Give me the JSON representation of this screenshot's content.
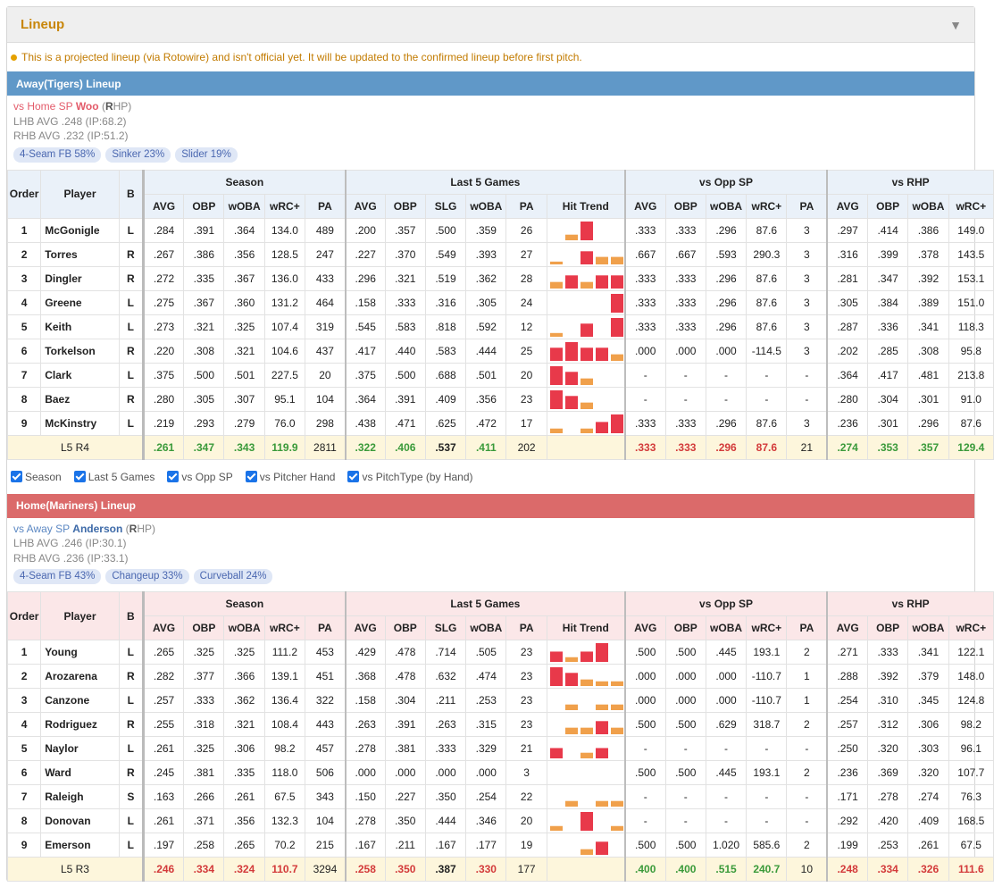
{
  "panel": {
    "title": "Lineup"
  },
  "notice": "This is a projected lineup (via Rotowire) and isn't official yet. It will be updated to the confirmed lineup before first pitch.",
  "checkboxes": [
    "Season",
    "Last 5 Games",
    "vs Opp SP",
    "vs Pitcher Hand",
    "vs PitchType (by Hand)"
  ],
  "columns": {
    "order": "Order",
    "player": "Player",
    "b": "B",
    "season": "Season",
    "last5": "Last 5 Games",
    "vs_opp": "vs Opp SP",
    "vs_hand": "vs RHP",
    "season_cols": [
      "AVG",
      "OBP",
      "wOBA",
      "wRC+",
      "PA"
    ],
    "last5_cols": [
      "AVG",
      "OBP",
      "SLG",
      "wOBA",
      "PA",
      "Hit Trend"
    ],
    "opp_cols": [
      "AVG",
      "OBP",
      "wOBA",
      "wRC+",
      "PA"
    ],
    "hand_cols": [
      "AVG",
      "OBP",
      "wOBA",
      "wRC+"
    ]
  },
  "colors": {
    "trend_red": "#e8394a",
    "trend_orange": "#f0a04b"
  },
  "away": {
    "bar": "Away(Tigers) Lineup",
    "sp_vs": "vs Home SP",
    "sp_name": "Woo",
    "sp_hand_letter": "R",
    "sp_hand_rest": "HP",
    "lhb": "LHB AVG .248 (IP:68.2)",
    "rhb": "RHB AVG .232 (IP:51.2)",
    "pitches": [
      "4-Seam FB 58%",
      "Sinker 23%",
      "Slider 19%"
    ],
    "rows": [
      {
        "o": "1",
        "p": "McGonigle",
        "b": "L",
        "s": [
          ".284",
          ".391",
          ".364",
          "134.0",
          "489"
        ],
        "l": [
          ".200",
          ".357",
          ".500",
          ".359",
          "26"
        ],
        "t": [
          0,
          0.3,
          1,
          0,
          0
        ],
        "v": [
          ".333",
          ".333",
          ".296",
          "87.6",
          "3"
        ],
        "h": [
          ".297",
          ".414",
          ".386",
          "149.0"
        ]
      },
      {
        "o": "2",
        "p": "Torres",
        "b": "R",
        "s": [
          ".267",
          ".386",
          ".356",
          "128.5",
          "247"
        ],
        "l": [
          ".227",
          ".370",
          ".549",
          ".393",
          "27"
        ],
        "t": [
          0.15,
          0,
          0.7,
          0.4,
          0.4
        ],
        "v": [
          ".667",
          ".667",
          ".593",
          "290.3",
          "3"
        ],
        "h": [
          ".316",
          ".399",
          ".378",
          "143.5"
        ]
      },
      {
        "o": "3",
        "p": "Dingler",
        "b": "R",
        "s": [
          ".272",
          ".335",
          ".367",
          "136.0",
          "433"
        ],
        "l": [
          ".296",
          ".321",
          ".519",
          ".362",
          "28"
        ],
        "t": [
          0.35,
          0.7,
          0.35,
          0.7,
          0.7
        ],
        "v": [
          ".333",
          ".333",
          ".296",
          "87.6",
          "3"
        ],
        "h": [
          ".281",
          ".347",
          ".392",
          "153.1"
        ]
      },
      {
        "o": "4",
        "p": "Greene",
        "b": "L",
        "s": [
          ".275",
          ".367",
          ".360",
          "131.2",
          "464"
        ],
        "l": [
          ".158",
          ".333",
          ".316",
          ".305",
          "24"
        ],
        "t": [
          0,
          0,
          0,
          0,
          1
        ],
        "v": [
          ".333",
          ".333",
          ".296",
          "87.6",
          "3"
        ],
        "h": [
          ".305",
          ".384",
          ".389",
          "151.0"
        ]
      },
      {
        "o": "5",
        "p": "Keith",
        "b": "L",
        "s": [
          ".273",
          ".321",
          ".325",
          "107.4",
          "319"
        ],
        "l": [
          ".545",
          ".583",
          ".818",
          ".592",
          "12"
        ],
        "t": [
          0.2,
          0,
          0.7,
          0,
          1
        ],
        "v": [
          ".333",
          ".333",
          ".296",
          "87.6",
          "3"
        ],
        "h": [
          ".287",
          ".336",
          ".341",
          "118.3"
        ]
      },
      {
        "o": "6",
        "p": "Torkelson",
        "b": "R",
        "s": [
          ".220",
          ".308",
          ".321",
          "104.6",
          "437"
        ],
        "l": [
          ".417",
          ".440",
          ".583",
          ".444",
          "25"
        ],
        "t": [
          0.7,
          1,
          0.7,
          0.7,
          0.35
        ],
        "v": [
          ".000",
          ".000",
          ".000",
          "-114.5",
          "3"
        ],
        "h": [
          ".202",
          ".285",
          ".308",
          "95.8"
        ]
      },
      {
        "o": "7",
        "p": "Clark",
        "b": "L",
        "s": [
          ".375",
          ".500",
          ".501",
          "227.5",
          "20"
        ],
        "l": [
          ".375",
          ".500",
          ".688",
          ".501",
          "20"
        ],
        "t": [
          1,
          0.7,
          0.35,
          0,
          0
        ],
        "v": [
          "-",
          "-",
          "-",
          "-",
          "-"
        ],
        "h": [
          ".364",
          ".417",
          ".481",
          "213.8"
        ]
      },
      {
        "o": "8",
        "p": "Baez",
        "b": "R",
        "s": [
          ".280",
          ".305",
          ".307",
          "95.1",
          "104"
        ],
        "l": [
          ".364",
          ".391",
          ".409",
          ".356",
          "23"
        ],
        "t": [
          1,
          0.7,
          0.35,
          0,
          0
        ],
        "v": [
          "-",
          "-",
          "-",
          "-",
          "-"
        ],
        "h": [
          ".280",
          ".304",
          ".301",
          "91.0"
        ]
      },
      {
        "o": "9",
        "p": "McKinstry",
        "b": "L",
        "s": [
          ".219",
          ".293",
          ".279",
          "76.0",
          "298"
        ],
        "l": [
          ".438",
          ".471",
          ".625",
          ".472",
          "17"
        ],
        "t": [
          0.25,
          0,
          0.25,
          0.6,
          1
        ],
        "v": [
          ".333",
          ".333",
          ".296",
          "87.6",
          "3"
        ],
        "h": [
          ".236",
          ".301",
          ".296",
          "87.6"
        ]
      }
    ],
    "foot": {
      "label": "L5 R4",
      "s": [
        ".261",
        ".347",
        ".343",
        "119.9",
        "2811"
      ],
      "l": [
        ".322",
        ".406",
        ".537",
        ".411",
        "202"
      ],
      "v": [
        ".333",
        ".333",
        ".296",
        "87.6",
        "21"
      ],
      "h": [
        ".274",
        ".353",
        ".357",
        "129.4"
      ]
    }
  },
  "home": {
    "bar": "Home(Mariners) Lineup",
    "sp_vs": "vs Away SP",
    "sp_name": "Anderson",
    "sp_hand_letter": "R",
    "sp_hand_rest": "HP",
    "lhb": "LHB AVG .246 (IP:30.1)",
    "rhb": "RHB AVG .236 (IP:33.1)",
    "pitches": [
      "4-Seam FB 43%",
      "Changeup 33%",
      "Curveball 24%"
    ],
    "rows": [
      {
        "o": "1",
        "p": "Young",
        "b": "L",
        "s": [
          ".265",
          ".325",
          ".325",
          "111.2",
          "453"
        ],
        "l": [
          ".429",
          ".478",
          ".714",
          ".505",
          "23"
        ],
        "t": [
          0.55,
          0.25,
          0.55,
          1,
          0
        ],
        "v": [
          ".500",
          ".500",
          ".445",
          "193.1",
          "2"
        ],
        "h": [
          ".271",
          ".333",
          ".341",
          "122.1"
        ]
      },
      {
        "o": "2",
        "p": "Arozarena",
        "b": "R",
        "s": [
          ".282",
          ".377",
          ".366",
          "139.1",
          "451"
        ],
        "l": [
          ".368",
          ".478",
          ".632",
          ".474",
          "23"
        ],
        "t": [
          1,
          0.7,
          0.35,
          0.25,
          0.25
        ],
        "v": [
          ".000",
          ".000",
          ".000",
          "-110.7",
          "1"
        ],
        "h": [
          ".288",
          ".392",
          ".379",
          "148.0"
        ]
      },
      {
        "o": "3",
        "p": "Canzone",
        "b": "L",
        "s": [
          ".257",
          ".333",
          ".362",
          "136.4",
          "322"
        ],
        "l": [
          ".158",
          ".304",
          ".211",
          ".253",
          "23"
        ],
        "t": [
          0,
          0.3,
          0,
          0.3,
          0.3
        ],
        "v": [
          ".000",
          ".000",
          ".000",
          "-110.7",
          "1"
        ],
        "h": [
          ".254",
          ".310",
          ".345",
          "124.8"
        ]
      },
      {
        "o": "4",
        "p": "Rodriguez",
        "b": "R",
        "s": [
          ".255",
          ".318",
          ".321",
          "108.4",
          "443"
        ],
        "l": [
          ".263",
          ".391",
          ".263",
          ".315",
          "23"
        ],
        "t": [
          0,
          0.35,
          0.35,
          0.7,
          0.35
        ],
        "v": [
          ".500",
          ".500",
          ".629",
          "318.7",
          "2"
        ],
        "h": [
          ".257",
          ".312",
          ".306",
          "98.2"
        ]
      },
      {
        "o": "5",
        "p": "Naylor",
        "b": "L",
        "s": [
          ".261",
          ".325",
          ".306",
          "98.2",
          "457"
        ],
        "l": [
          ".278",
          ".381",
          ".333",
          ".329",
          "21"
        ],
        "t": [
          0.55,
          0,
          0.3,
          0.55,
          0
        ],
        "v": [
          "-",
          "-",
          "-",
          "-",
          "-"
        ],
        "h": [
          ".250",
          ".320",
          ".303",
          "96.1"
        ]
      },
      {
        "o": "6",
        "p": "Ward",
        "b": "R",
        "s": [
          ".245",
          ".381",
          ".335",
          "118.0",
          "506"
        ],
        "l": [
          ".000",
          ".000",
          ".000",
          ".000",
          "3"
        ],
        "t": [
          0,
          0,
          0,
          0,
          0
        ],
        "v": [
          ".500",
          ".500",
          ".445",
          "193.1",
          "2"
        ],
        "h": [
          ".236",
          ".369",
          ".320",
          "107.7"
        ]
      },
      {
        "o": "7",
        "p": "Raleigh",
        "b": "S",
        "s": [
          ".163",
          ".266",
          ".261",
          "67.5",
          "343"
        ],
        "l": [
          ".150",
          ".227",
          ".350",
          ".254",
          "22"
        ],
        "t": [
          0,
          0.3,
          0,
          0.3,
          0.3
        ],
        "v": [
          "-",
          "-",
          "-",
          "-",
          "-"
        ],
        "h": [
          ".171",
          ".278",
          ".274",
          "76.3"
        ]
      },
      {
        "o": "8",
        "p": "Donovan",
        "b": "L",
        "s": [
          ".261",
          ".371",
          ".356",
          "132.3",
          "104"
        ],
        "l": [
          ".278",
          ".350",
          ".444",
          ".346",
          "20"
        ],
        "t": [
          0.25,
          0,
          1,
          0,
          0.25
        ],
        "v": [
          "-",
          "-",
          "-",
          "-",
          "-"
        ],
        "h": [
          ".292",
          ".420",
          ".409",
          "168.5"
        ]
      },
      {
        "o": "9",
        "p": "Emerson",
        "b": "L",
        "s": [
          ".197",
          ".258",
          ".265",
          "70.2",
          "215"
        ],
        "l": [
          ".167",
          ".211",
          ".167",
          ".177",
          "19"
        ],
        "t": [
          0,
          0,
          0.3,
          0.7,
          0
        ],
        "v": [
          ".500",
          ".500",
          "1.020",
          "585.6",
          "2"
        ],
        "h": [
          ".199",
          ".253",
          ".261",
          "67.5"
        ]
      }
    ],
    "foot": {
      "label": "L5 R3",
      "s": [
        ".246",
        ".334",
        ".324",
        "110.7",
        "3294"
      ],
      "l": [
        ".258",
        ".350",
        ".387",
        ".330",
        "177"
      ],
      "v": [
        ".400",
        ".400",
        ".515",
        "240.7",
        "10"
      ],
      "h": [
        ".248",
        ".334",
        ".326",
        "111.6"
      ]
    }
  }
}
